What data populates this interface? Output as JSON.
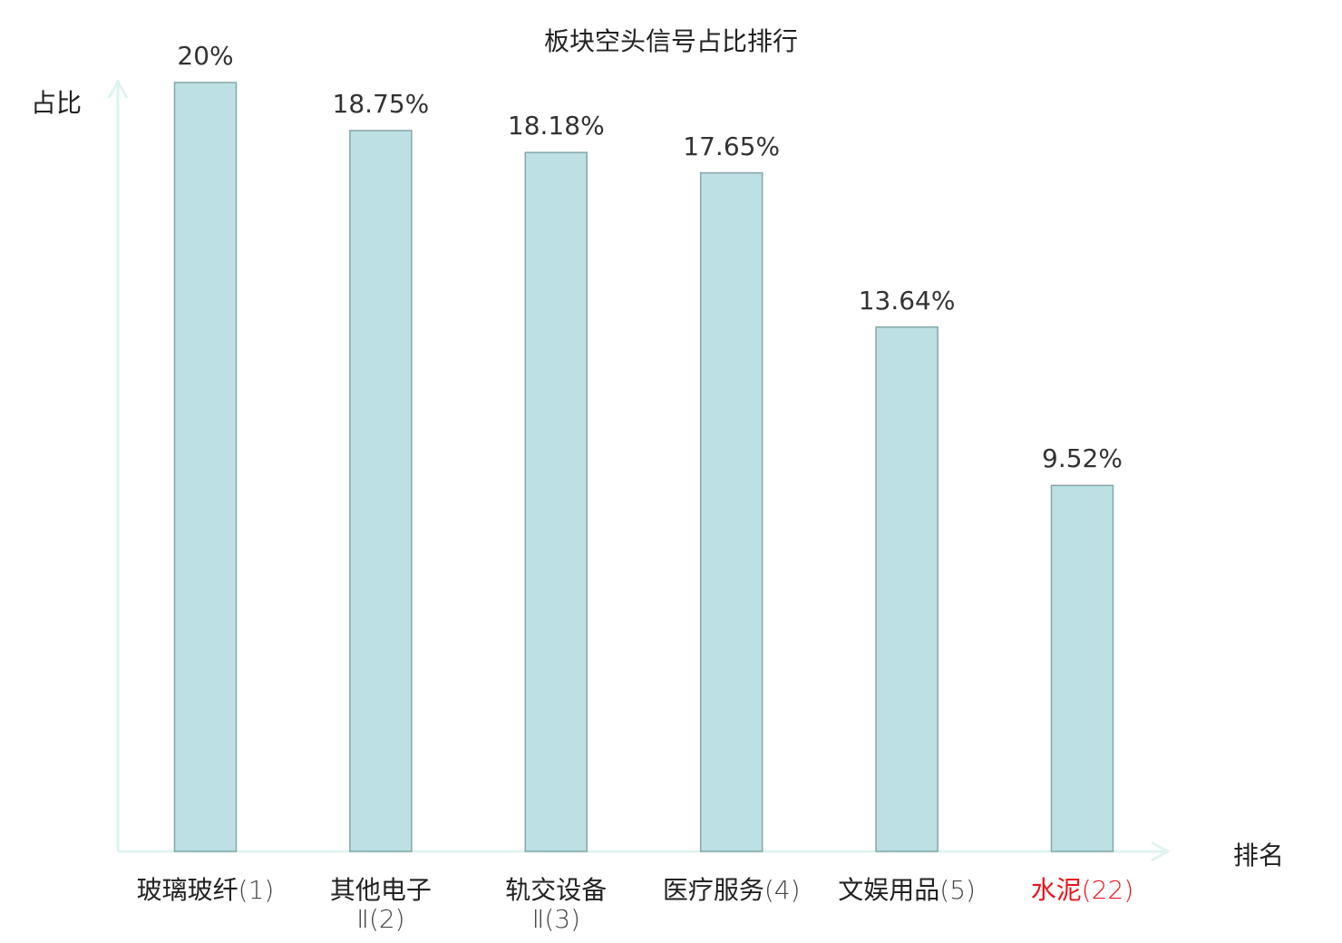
{
  "chart_data": {
    "type": "bar",
    "title": "板块空头信号占比排行",
    "xlabel": "排名",
    "ylabel": "占比",
    "ylim": [
      0,
      20
    ],
    "grid": false,
    "categories": [
      {
        "name": "玻璃玻纤",
        "suffix": "",
        "rank": "(1)",
        "highlight": false
      },
      {
        "name": "其他电子",
        "suffix": "Ⅱ",
        "rank": "(2)",
        "highlight": false
      },
      {
        "name": "轨交设备",
        "suffix": "Ⅱ",
        "rank": "(3)",
        "highlight": false
      },
      {
        "name": "医疗服务",
        "suffix": "",
        "rank": "(4)",
        "highlight": false
      },
      {
        "name": "文娱用品",
        "suffix": "",
        "rank": "(5)",
        "highlight": false
      },
      {
        "name": "水泥",
        "suffix": "",
        "rank": "(22)",
        "highlight": true
      }
    ],
    "values": [
      20,
      18.75,
      18.18,
      17.65,
      13.64,
      9.52
    ],
    "value_labels": [
      "20%",
      "18.75%",
      "18.18%",
      "17.65%",
      "13.64%",
      "9.52%"
    ],
    "colors": {
      "bar_fill": "#bce0e3",
      "bar_stroke": "#86a6a8",
      "axis": "#dff3f0",
      "highlight": "#e8141c"
    }
  }
}
